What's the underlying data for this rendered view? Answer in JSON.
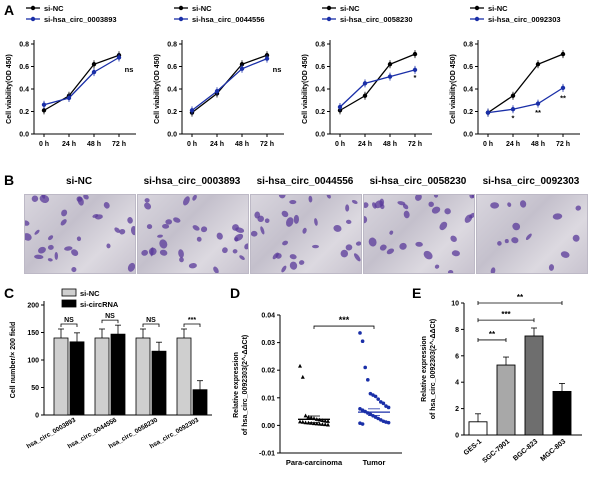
{
  "panels": {
    "A": "A",
    "B": "B",
    "C": "C",
    "D": "D",
    "E": "E"
  },
  "colors": {
    "control": "#000000",
    "knockdown": "#1a2fa8",
    "bar_light": "#cfcfcf",
    "bar_dark": "#000000",
    "cell_stain": "#5a3a9a"
  },
  "panel_a": {
    "ylabel": "Cell viability(OD 450)",
    "x_labels": [
      "0 h",
      "24 h",
      "48 h",
      "72 h"
    ],
    "y_ticks": [
      "0.0",
      "0.2",
      "0.4",
      "0.6",
      "0.8"
    ],
    "charts": [
      {
        "legend_a": "si-NC",
        "legend_b": "si-hsa_circ_0003893",
        "ctrl": [
          0.21,
          0.34,
          0.62,
          0.7
        ],
        "kd": [
          0.26,
          0.32,
          0.55,
          0.68
        ],
        "annotations": [
          {
            "x": 3,
            "y": 0.55,
            "text": "ns"
          }
        ]
      },
      {
        "legend_a": "si-NC",
        "legend_b": "si-hsa_circ_0044556",
        "ctrl": [
          0.19,
          0.36,
          0.62,
          0.7
        ],
        "kd": [
          0.21,
          0.38,
          0.58,
          0.67
        ],
        "annotations": [
          {
            "x": 3,
            "y": 0.55,
            "text": "ns"
          }
        ]
      },
      {
        "legend_a": "si-NC",
        "legend_b": "si-hsa_circ_0058230",
        "ctrl": [
          0.21,
          0.34,
          0.62,
          0.71
        ],
        "kd": [
          0.24,
          0.45,
          0.51,
          0.57
        ],
        "annotations": [
          {
            "x": 3,
            "y": 0.48,
            "text": "*"
          }
        ]
      },
      {
        "legend_a": "si-NC",
        "legend_b": "si-hsa_circ_0092303",
        "ctrl": [
          0.19,
          0.34,
          0.62,
          0.71
        ],
        "kd": [
          0.19,
          0.22,
          0.27,
          0.41
        ],
        "annotations": [
          {
            "x": 1,
            "y": 0.12,
            "text": "*"
          },
          {
            "x": 2,
            "y": 0.17,
            "text": "**"
          },
          {
            "x": 3,
            "y": 0.3,
            "text": "**"
          }
        ]
      }
    ]
  },
  "panel_b": {
    "titles": [
      "si-NC",
      "si-hsa_circ_0003893",
      "si-hsa_circ_0044556",
      "si-hsa_circ_0058230",
      "si-hsa_circ_0092303"
    ]
  },
  "panel_c": {
    "legend": [
      "si-NC",
      "si-circRNA"
    ],
    "ylabel": "Cell number/× 200 field",
    "y_ticks": [
      "0",
      "50",
      "100",
      "150",
      "200"
    ],
    "categories": [
      "hsa_circ_0003893",
      "hsa_circ_0044556",
      "hsa_circ_0058230",
      "hsa_circ_0092303"
    ],
    "si_nc": [
      140,
      140,
      140,
      140
    ],
    "si_circ": [
      133,
      147,
      116,
      46
    ],
    "significance": [
      "NS",
      "NS",
      "NS",
      "***"
    ]
  },
  "panel_d": {
    "ylabel_1": "Relative expression",
    "ylabel_2": "of hsa_circ_0092303(2^-ΔΔCt)",
    "y_ticks": [
      "-0.01",
      "0.00",
      "0.01",
      "0.02",
      "0.03",
      "0.04"
    ],
    "groups": [
      "Para-carcinoma",
      "Tumor"
    ],
    "significance": "***",
    "means": [
      0.0022,
      0.0048
    ]
  },
  "panel_e": {
    "ylabel_1": "Relative expression",
    "ylabel_2": "of hsa_circ_0092303(2^-ΔΔCt)",
    "y_ticks": [
      "0",
      "2",
      "4",
      "6",
      "8",
      "10"
    ],
    "categories": [
      "GES-1",
      "SGC-7901",
      "BGC-823",
      "MGC-803"
    ],
    "values": [
      1.0,
      5.3,
      7.5,
      3.3
    ],
    "significance": [
      "**",
      "***",
      "**"
    ]
  },
  "chart_data": [
    {
      "type": "line",
      "title": "",
      "x": [
        "0 h",
        "24 h",
        "48 h",
        "72 h"
      ],
      "ylabel": "Cell viability(OD 450)",
      "ylim": [
        0,
        0.8
      ],
      "series": [
        {
          "name": "si-NC",
          "values": [
            0.21,
            0.34,
            0.62,
            0.7
          ]
        },
        {
          "name": "si-hsa_circ_0003893",
          "values": [
            0.26,
            0.32,
            0.55,
            0.68
          ]
        }
      ]
    },
    {
      "type": "line",
      "title": "",
      "x": [
        "0 h",
        "24 h",
        "48 h",
        "72 h"
      ],
      "ylabel": "Cell viability(OD 450)",
      "ylim": [
        0,
        0.8
      ],
      "series": [
        {
          "name": "si-NC",
          "values": [
            0.19,
            0.36,
            0.62,
            0.7
          ]
        },
        {
          "name": "si-hsa_circ_0044556",
          "values": [
            0.21,
            0.38,
            0.58,
            0.67
          ]
        }
      ]
    },
    {
      "type": "line",
      "title": "",
      "x": [
        "0 h",
        "24 h",
        "48 h",
        "72 h"
      ],
      "ylabel": "Cell viability(OD 450)",
      "ylim": [
        0,
        0.8
      ],
      "series": [
        {
          "name": "si-NC",
          "values": [
            0.21,
            0.34,
            0.62,
            0.71
          ]
        },
        {
          "name": "si-hsa_circ_0058230",
          "values": [
            0.24,
            0.45,
            0.51,
            0.57
          ]
        }
      ]
    },
    {
      "type": "line",
      "title": "",
      "x": [
        "0 h",
        "24 h",
        "48 h",
        "72 h"
      ],
      "ylabel": "Cell viability(OD 450)",
      "ylim": [
        0,
        0.8
      ],
      "series": [
        {
          "name": "si-NC",
          "values": [
            0.19,
            0.34,
            0.62,
            0.71
          ]
        },
        {
          "name": "si-hsa_circ_0092303",
          "values": [
            0.19,
            0.22,
            0.27,
            0.41
          ]
        }
      ]
    },
    {
      "type": "bar",
      "title": "",
      "categories": [
        "hsa_circ_0003893",
        "hsa_circ_0044556",
        "hsa_circ_0058230",
        "hsa_circ_0092303"
      ],
      "ylabel": "Cell number/× 200 field",
      "ylim": [
        0,
        200
      ],
      "series": [
        {
          "name": "si-NC",
          "values": [
            140,
            140,
            140,
            140
          ]
        },
        {
          "name": "si-circRNA",
          "values": [
            133,
            147,
            116,
            46
          ]
        }
      ]
    },
    {
      "type": "scatter",
      "title": "",
      "categories": [
        "Para-carcinoma",
        "Tumor"
      ],
      "ylabel": "Relative expression of hsa_circ_0092303(2^-ΔΔCt)",
      "ylim": [
        -0.01,
        0.04
      ],
      "means": [
        0.0022,
        0.0048
      ]
    },
    {
      "type": "bar",
      "title": "",
      "categories": [
        "GES-1",
        "SGC-7901",
        "BGC-823",
        "MGC-803"
      ],
      "ylabel": "Relative expression of hsa_circ_0092303(2^-ΔΔCt)",
      "ylim": [
        0,
        10
      ],
      "values": [
        1.0,
        5.3,
        7.5,
        3.3
      ]
    }
  ]
}
